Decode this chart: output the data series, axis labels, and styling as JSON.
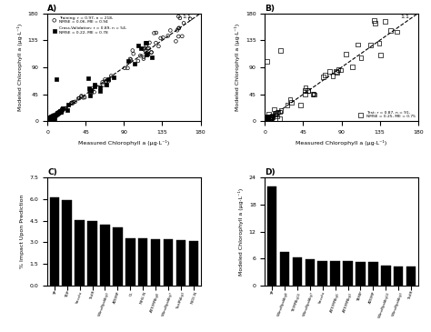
{
  "panel_A": {
    "label": "A)",
    "xlabel": "Measured Chlorophyll a (μg·L⁻¹)",
    "ylabel": "Modeled Chlorophyll a (μg·L⁻¹)",
    "xlim": [
      0,
      180
    ],
    "ylim": [
      0,
      180
    ],
    "xticks": [
      0,
      45,
      90,
      135,
      180
    ],
    "yticks": [
      0,
      45,
      90,
      135,
      180
    ],
    "training_legend": "Training: r = 0.97, n = 218,\nNMSE = 0.06, ME = 0.94",
    "cv_legend": "Cross-Validation: r = 0.89, n = 54,\nNMSE = 0.22, ME = 0.78"
  },
  "panel_B": {
    "label": "B)",
    "xlabel": "Measured Chlorophyll a (μg·L⁻¹)",
    "ylabel": "Modeled Chlorophyll a (μg·L⁻¹)",
    "xlim": [
      0,
      180
    ],
    "ylim": [
      0,
      180
    ],
    "xticks": [
      0,
      45,
      90,
      135,
      180
    ],
    "yticks": [
      0,
      45,
      90,
      135,
      180
    ],
    "test_legend": "Test: r = 0.87, n = 91,\nNMSE = 0.25, ME = 0.75"
  },
  "panel_C": {
    "label": "C)",
    "ylabel": "% Impact Upon Prediction",
    "ylim": [
      0,
      7.5
    ],
    "yticks": [
      0,
      1.5,
      3.0,
      4.5,
      6.0,
      7.5
    ],
    "categories": [
      "TP",
      "TDP",
      "Secchi",
      "TotIR",
      "WindSpd$_{Avg3}$",
      "ATEMP",
      "CL",
      "NH$_4$-N",
      "ATEMP$_{Avg8}$",
      "WindSpd$_{Avg7}$",
      "TotIR$_{Avg3}$",
      "NO$_3$-N"
    ],
    "values": [
      6.1,
      5.9,
      4.55,
      4.45,
      4.2,
      4.05,
      3.25,
      3.25,
      3.2,
      3.2,
      3.15,
      3.1
    ]
  },
  "panel_D": {
    "label": "D)",
    "ylabel": "Modeled Chlorophyll a (μg·L⁻¹)",
    "ylim": [
      0,
      24
    ],
    "yticks": [
      0,
      6,
      12,
      18,
      24
    ],
    "categories": [
      "TP",
      "WindSpd$_{Avg8}$",
      "TEMP$_{Avg10}$",
      "WindSpd$_{Avg7}$",
      "Secchi",
      "ATEMP$_{Avg5}$",
      "ATEMP$_{Avg3}$",
      "TEMP",
      "ATEMP",
      "WindSpd$_{Avg10}$",
      "WindSpd$_{Avg3}$",
      "TotIR"
    ],
    "values": [
      22.0,
      7.5,
      6.2,
      5.8,
      5.5,
      5.5,
      5.5,
      5.3,
      5.2,
      4.5,
      4.3,
      4.3
    ]
  }
}
